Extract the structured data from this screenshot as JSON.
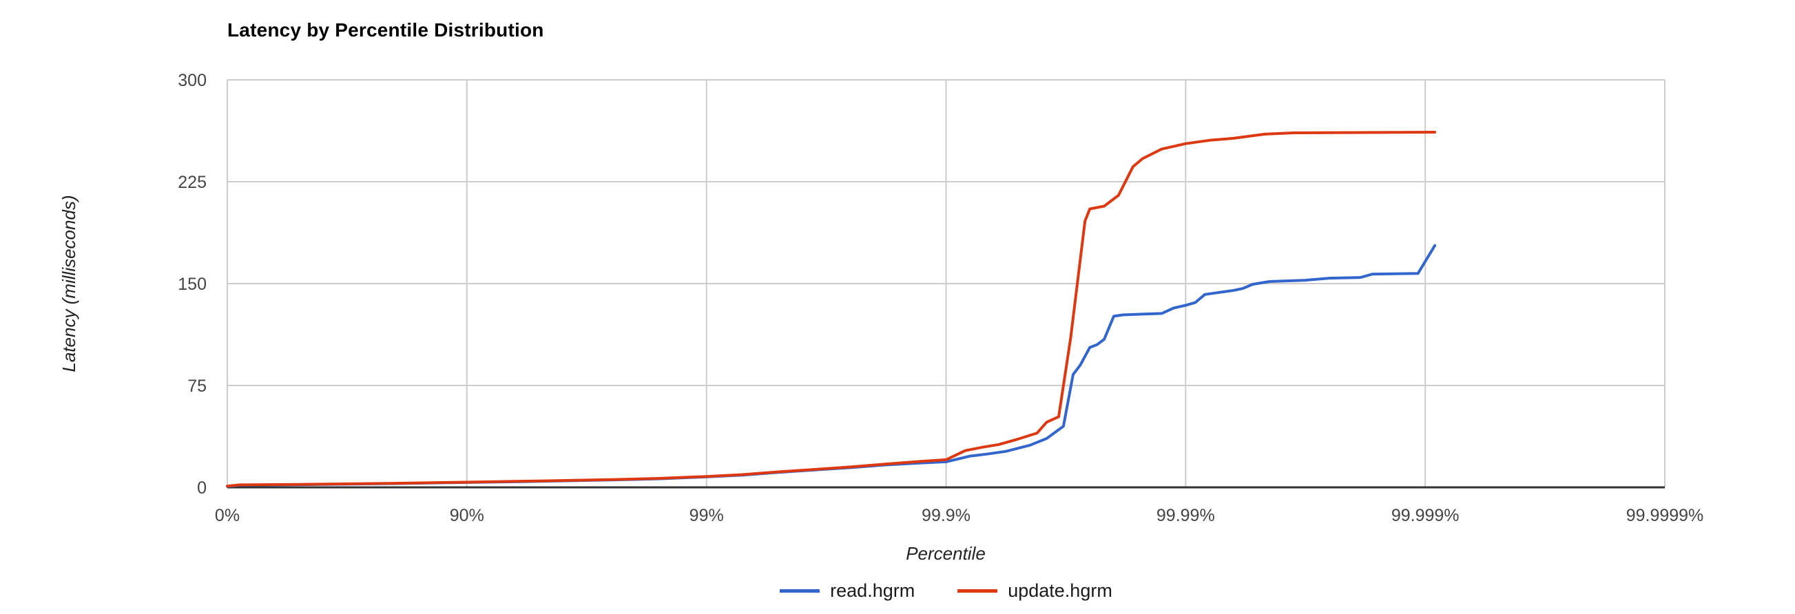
{
  "chart_data": {
    "type": "line",
    "title": "Latency by Percentile Distribution",
    "xlabel": "Percentile",
    "ylabel": "Latency (milliseconds)",
    "x_axis": {
      "scale": "log-percentile",
      "range_nines": [
        0,
        6
      ],
      "ticks": [
        {
          "label": "0%",
          "nines": 0
        },
        {
          "label": "90%",
          "nines": 1
        },
        {
          "label": "99%",
          "nines": 2
        },
        {
          "label": "99.9%",
          "nines": 3
        },
        {
          "label": "99.99%",
          "nines": 4
        },
        {
          "label": "99.999%",
          "nines": 5
        },
        {
          "label": "99.9999%",
          "nines": 6
        }
      ]
    },
    "y_axis": {
      "range": [
        0,
        300
      ],
      "grid": true,
      "ticks": [
        {
          "label": "0",
          "value": 0
        },
        {
          "label": "75",
          "value": 75
        },
        {
          "label": "150",
          "value": 150
        },
        {
          "label": "225",
          "value": 225
        },
        {
          "label": "300",
          "value": 300
        }
      ]
    },
    "legend": {
      "position": "bottom"
    },
    "colors": {
      "grid": "#cccccc",
      "axis_line": "#333333",
      "tick_text": "#444444",
      "axis_title_text": "#222222"
    },
    "series": [
      {
        "name": "read.hgrm",
        "color": "#3366CC",
        "points_nines_ms": [
          [
            0,
            0.7
          ],
          [
            0.05,
            1.6
          ],
          [
            0.3,
            2.0
          ],
          [
            0.7,
            2.8
          ],
          [
            1,
            3.6
          ],
          [
            1.3,
            4.4
          ],
          [
            1.6,
            5.4
          ],
          [
            1.8,
            6.3
          ],
          [
            2,
            7.7
          ],
          [
            2.15,
            9.0
          ],
          [
            2.3,
            11.0
          ],
          [
            2.45,
            12.8
          ],
          [
            2.6,
            14.5
          ],
          [
            2.75,
            16.5
          ],
          [
            2.9,
            18.0
          ],
          [
            3,
            18.8
          ],
          [
            3.1,
            23.0
          ],
          [
            3.17,
            24.5
          ],
          [
            3.25,
            26.5
          ],
          [
            3.35,
            31.0
          ],
          [
            3.42,
            36.0
          ],
          [
            3.49,
            45.0
          ],
          [
            3.53,
            83.0
          ],
          [
            3.56,
            90.0
          ],
          [
            3.6,
            103.0
          ],
          [
            3.63,
            105.0
          ],
          [
            3.66,
            109.0
          ],
          [
            3.7,
            126.0
          ],
          [
            3.74,
            127.0
          ],
          [
            3.9,
            128.0
          ],
          [
            3.95,
            132.0
          ],
          [
            4.0,
            134.0
          ],
          [
            4.04,
            136.0
          ],
          [
            4.08,
            142.0
          ],
          [
            4.12,
            143.0
          ],
          [
            4.2,
            145.0
          ],
          [
            4.24,
            146.5
          ],
          [
            4.28,
            149.5
          ],
          [
            4.35,
            151.5
          ],
          [
            4.5,
            152.5
          ],
          [
            4.6,
            154.0
          ],
          [
            4.73,
            154.5
          ],
          [
            4.78,
            157.0
          ],
          [
            4.97,
            157.5
          ],
          [
            5.04,
            178.0
          ]
        ]
      },
      {
        "name": "update.hgrm",
        "color": "#DC3912",
        "points_nines_ms": [
          [
            0,
            0.9
          ],
          [
            0.05,
            1.8
          ],
          [
            0.3,
            2.2
          ],
          [
            0.7,
            3.0
          ],
          [
            1,
            3.8
          ],
          [
            1.3,
            4.7
          ],
          [
            1.6,
            5.7
          ],
          [
            1.8,
            6.6
          ],
          [
            2,
            8.0
          ],
          [
            2.15,
            9.4
          ],
          [
            2.3,
            11.4
          ],
          [
            2.45,
            13.2
          ],
          [
            2.6,
            15.0
          ],
          [
            2.75,
            17.2
          ],
          [
            2.9,
            19.2
          ],
          [
            3,
            20.3
          ],
          [
            3.08,
            27.0
          ],
          [
            3.15,
            29.5
          ],
          [
            3.22,
            31.5
          ],
          [
            3.3,
            35.5
          ],
          [
            3.38,
            40.0
          ],
          [
            3.42,
            48.0
          ],
          [
            3.47,
            52.0
          ],
          [
            3.52,
            110.0
          ],
          [
            3.58,
            196.0
          ],
          [
            3.6,
            205.0
          ],
          [
            3.66,
            207.0
          ],
          [
            3.72,
            215.0
          ],
          [
            3.78,
            236.0
          ],
          [
            3.82,
            242.0
          ],
          [
            3.9,
            249.0
          ],
          [
            4.0,
            253.0
          ],
          [
            4.1,
            255.5
          ],
          [
            4.2,
            257.0
          ],
          [
            4.33,
            260.0
          ],
          [
            4.45,
            261.0
          ],
          [
            5.04,
            261.5
          ]
        ]
      }
    ]
  }
}
